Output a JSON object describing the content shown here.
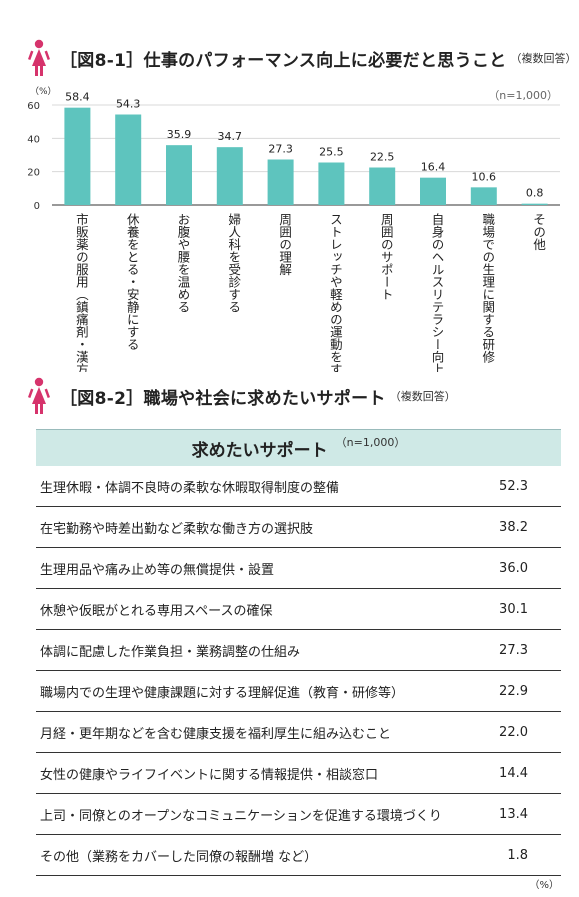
{
  "colors": {
    "bar": "#5ec4be",
    "accent": "#d6336c",
    "table_header": "#cfe9e6"
  },
  "figure1": {
    "icon": "woman-icon",
    "title": "［図8-1］仕事のパフォーマンス向上に必要だと思うこと",
    "subtitle": "（複数回答）",
    "unit": "（%）",
    "n_label": "（n=1,000）"
  },
  "chart_data": {
    "type": "bar",
    "categories": [
      "市販薬の服用（鎮痛剤・漢方等）",
      "休養をとる・安静にする",
      "お腹や腰を温める",
      "婦人科を受診する",
      "周囲の理解",
      "ストレッチや軽めの運動をする",
      "周囲のサポート",
      "自身のヘルスリテラシー向上",
      "職場での生理に関する研修",
      "その他"
    ],
    "values": [
      58.4,
      54.3,
      35.9,
      34.7,
      27.3,
      25.5,
      22.5,
      16.4,
      10.6,
      0.8
    ],
    "value_labels": [
      "58.4",
      "54.3",
      "35.9",
      "34.7",
      "27.3",
      "25.5",
      "22.5",
      "16.4",
      "10.6",
      "0.8"
    ],
    "ylim": [
      0,
      60
    ],
    "yticks": [
      0,
      20,
      40,
      60
    ],
    "grid": true
  },
  "figure2": {
    "icon": "woman-icon",
    "title": "［図8-2］職場や社会に求めたいサポート",
    "subtitle": "（複数回答）",
    "header": "求めたいサポート",
    "n_label": "（n=1,000）",
    "unit": "（%）",
    "rows": [
      {
        "label": "生理休暇・体調不良時の柔軟な休暇取得制度の整備",
        "value": "52.3"
      },
      {
        "label": "在宅勤務や時差出勤など柔軟な働き方の選択肢",
        "value": "38.2"
      },
      {
        "label": "生理用品や痛み止め等の無償提供・設置",
        "value": "36.0"
      },
      {
        "label": "休憩や仮眠がとれる専用スペースの確保",
        "value": "30.1"
      },
      {
        "label": "体調に配慮した作業負担・業務調整の仕組み",
        "value": "27.3"
      },
      {
        "label": "職場内での生理や健康課題に対する理解促進（教育・研修等）",
        "value": "22.9"
      },
      {
        "label": "月経・更年期などを含む健康支援を福利厚生に組み込むこと",
        "value": "22.0"
      },
      {
        "label": "女性の健康やライフイベントに関する情報提供・相談窓口",
        "value": "14.4"
      },
      {
        "label": "上司・同僚とのオープンなコミュニケーションを促進する環境づくり",
        "value": "13.4"
      },
      {
        "label": "その他（業務をカバーした同僚の報酬増 など）",
        "value": "1.8"
      }
    ]
  }
}
